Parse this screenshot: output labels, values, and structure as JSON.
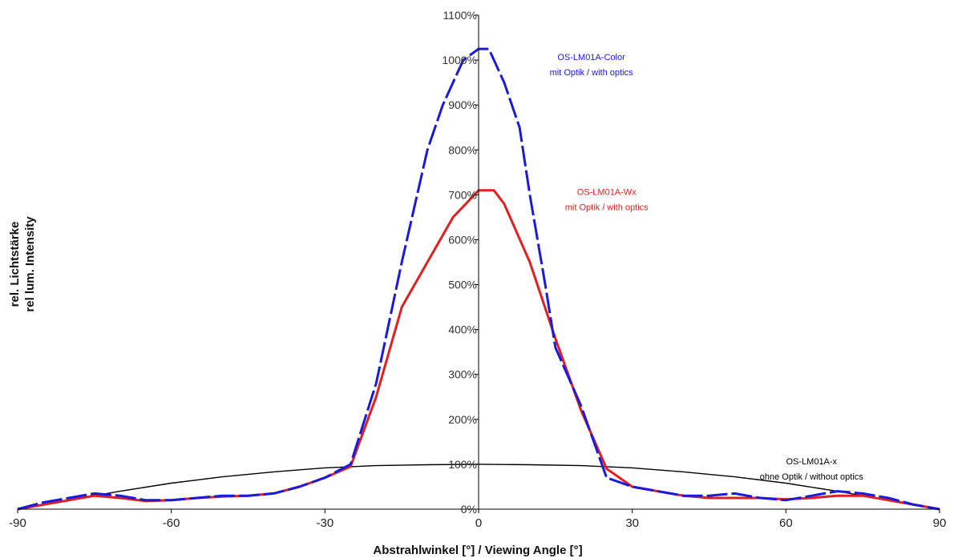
{
  "chart_data": {
    "type": "line",
    "title": "",
    "xlabel": "Abstrahlwinkel [°] / Viewing Angle [°]",
    "ylabel_lines": [
      "rel. Lichtstärke",
      "rel lum. Intensity"
    ],
    "xlim": [
      -90,
      90
    ],
    "ylim": [
      0,
      1100
    ],
    "x_ticks": [
      -90,
      -60,
      -30,
      0,
      30,
      60,
      90
    ],
    "x_tick_labels": [
      "-90",
      "-60",
      "-30",
      "0",
      "30",
      "60",
      "90"
    ],
    "y_ticks": [
      0,
      100,
      200,
      300,
      400,
      500,
      600,
      700,
      800,
      900,
      1000,
      1100
    ],
    "y_tick_labels": [
      "0%",
      "100%",
      "200%",
      "300%",
      "400%",
      "500%",
      "600%",
      "700%",
      "800%",
      "900%",
      "1000%",
      "1100%"
    ],
    "grid": false,
    "series": [
      {
        "name": "OS-LM01A-x",
        "color": "#000000",
        "x": [
          -90,
          -80,
          -70,
          -60,
          -50,
          -40,
          -30,
          -20,
          -10,
          0,
          10,
          20,
          30,
          40,
          50,
          60,
          70,
          80,
          90
        ],
        "y": [
          0,
          20,
          40,
          58,
          72,
          83,
          92,
          97,
          99,
          100,
          99,
          97,
          92,
          83,
          72,
          58,
          40,
          20,
          0
        ]
      },
      {
        "name": "OS-LM01A-Wx",
        "color": "#e02020",
        "x": [
          -90,
          -85,
          -80,
          -75,
          -70,
          -65,
          -60,
          -55,
          -50,
          -45,
          -40,
          -35,
          -30,
          -25,
          -20,
          -15,
          -10,
          -5,
          0,
          3,
          5,
          10,
          15,
          20,
          25,
          30,
          35,
          40,
          45,
          50,
          55,
          60,
          65,
          70,
          75,
          80,
          85,
          90
        ],
        "y": [
          0,
          10,
          20,
          30,
          25,
          18,
          20,
          25,
          28,
          30,
          35,
          50,
          70,
          95,
          250,
          450,
          550,
          650,
          710,
          710,
          680,
          550,
          380,
          220,
          90,
          50,
          40,
          30,
          25,
          25,
          25,
          22,
          25,
          30,
          30,
          20,
          10,
          0
        ]
      },
      {
        "name": "OS-LM01A-Color",
        "color": "#1a1adc",
        "x": [
          -90,
          -85,
          -80,
          -75,
          -70,
          -65,
          -60,
          -55,
          -50,
          -45,
          -40,
          -35,
          -30,
          -25,
          -20,
          -15,
          -10,
          -7,
          -5,
          -3,
          0,
          2,
          5,
          8,
          10,
          13,
          15,
          20,
          25,
          30,
          35,
          40,
          45,
          50,
          55,
          60,
          65,
          70,
          75,
          80,
          85,
          90
        ],
        "y": [
          0,
          15,
          25,
          35,
          30,
          20,
          20,
          25,
          30,
          30,
          35,
          50,
          70,
          100,
          280,
          550,
          800,
          900,
          950,
          1000,
          1025,
          1025,
          950,
          850,
          700,
          500,
          360,
          230,
          70,
          50,
          40,
          30,
          30,
          35,
          25,
          20,
          30,
          40,
          35,
          25,
          10,
          0
        ]
      }
    ],
    "annotations": [
      {
        "lines": [
          "OS-LM01A-Color",
          "mit Optik / with optics"
        ],
        "color": "#1a1adc",
        "x": 22,
        "y": 1000
      },
      {
        "lines": [
          "OS-LM01A-Wx",
          "mit Optik / with optics"
        ],
        "color": "#e02020",
        "x": 25,
        "y": 700
      },
      {
        "lines": [
          "OS-LM01A-x",
          "ohne Optik / without optics"
        ],
        "color": "#000000",
        "x": 65,
        "y": 100
      }
    ]
  }
}
